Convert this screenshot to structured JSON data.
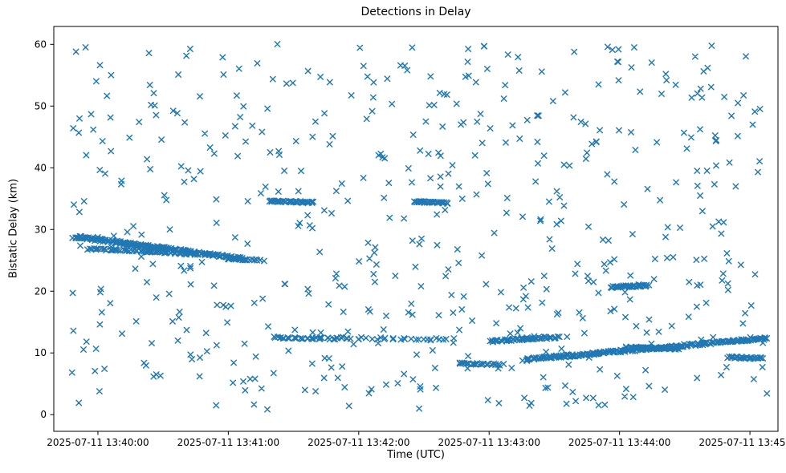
{
  "chart_data": {
    "type": "scatter",
    "title": "Detections in Delay",
    "xlabel": "Time (UTC)",
    "ylabel": "Bistatic Delay (km)",
    "marker": "x",
    "marker_color": "#1f77b4",
    "grid": false,
    "legend": false,
    "xlim_seconds": [
      -20.3,
      312.9
    ],
    "ylim": [
      -2.7,
      62.9
    ],
    "x_ticks": {
      "seconds": [
        0,
        60,
        120,
        180,
        240,
        300
      ],
      "labels": [
        "2025-07-11 13:40:00",
        "2025-07-11 13:41:00",
        "2025-07-11 13:42:00",
        "2025-07-11 13:43:00",
        "2025-07-11 13:44:00",
        "2025-07-11 13:45:00"
      ]
    },
    "y_ticks": [
      0,
      10,
      20,
      30,
      40,
      50,
      60
    ],
    "tracks": [
      {
        "name": "descending-track-29-to-25",
        "t0": -10,
        "t1": 68,
        "y0": 28.8,
        "y1": 25.2,
        "n": 210,
        "jt": 1.0,
        "jy": 0.2
      },
      {
        "name": "descending-track-27-to-26",
        "t0": -4,
        "t1": 46,
        "y0": 26.9,
        "y1": 26.0,
        "n": 70,
        "jt": 1.0,
        "jy": 0.15
      },
      {
        "name": "tail-25",
        "t0": 60,
        "t1": 76,
        "y0": 25.2,
        "y1": 25.0,
        "n": 18,
        "jt": 0.8,
        "jy": 0.1
      },
      {
        "name": "flat-34p5-a",
        "t0": 79,
        "t1": 99,
        "y0": 34.6,
        "y1": 34.4,
        "n": 42,
        "jt": 0.6,
        "jy": 0.12
      },
      {
        "name": "flat-34p5-b",
        "t0": 146,
        "t1": 161,
        "y0": 34.5,
        "y1": 34.3,
        "n": 32,
        "jt": 0.5,
        "jy": 0.12
      },
      {
        "name": "flat-12p4-a",
        "t0": 81,
        "t1": 110,
        "y0": 12.5,
        "y1": 12.3,
        "n": 34,
        "jt": 1.2,
        "jy": 0.15
      },
      {
        "name": "flat-12p4-b",
        "t0": 112,
        "t1": 163,
        "y0": 12.4,
        "y1": 12.2,
        "n": 30,
        "jt": 1.5,
        "jy": 0.18
      },
      {
        "name": "flat-8p2",
        "t0": 166,
        "t1": 186,
        "y0": 8.3,
        "y1": 8.1,
        "n": 26,
        "jt": 0.8,
        "jy": 0.12
      },
      {
        "name": "rising-blob-12",
        "t0": 181,
        "t1": 212,
        "y0": 11.9,
        "y1": 12.6,
        "n": 64,
        "jt": 0.8,
        "jy": 0.18
      },
      {
        "name": "rising-track-9-to-12",
        "t0": 196,
        "t1": 308,
        "y0": 8.9,
        "y1": 12.4,
        "n": 230,
        "jt": 1.0,
        "jy": 0.2
      },
      {
        "name": "flat-20p8",
        "t0": 236,
        "t1": 253,
        "y0": 20.7,
        "y1": 20.9,
        "n": 36,
        "jt": 0.6,
        "jy": 0.15
      },
      {
        "name": "flat-10p8",
        "t0": 243,
        "t1": 267,
        "y0": 10.9,
        "y1": 10.7,
        "n": 48,
        "jt": 0.8,
        "jy": 0.15
      },
      {
        "name": "flat-9p2-right",
        "t0": 290,
        "t1": 306,
        "y0": 9.3,
        "y1": 9.1,
        "n": 30,
        "jt": 0.6,
        "jy": 0.15
      }
    ],
    "background_noise": {
      "n": 560,
      "t0": -12,
      "t1": 308,
      "y0": 0.8,
      "y1": 60.3,
      "seed": 20250711
    }
  }
}
